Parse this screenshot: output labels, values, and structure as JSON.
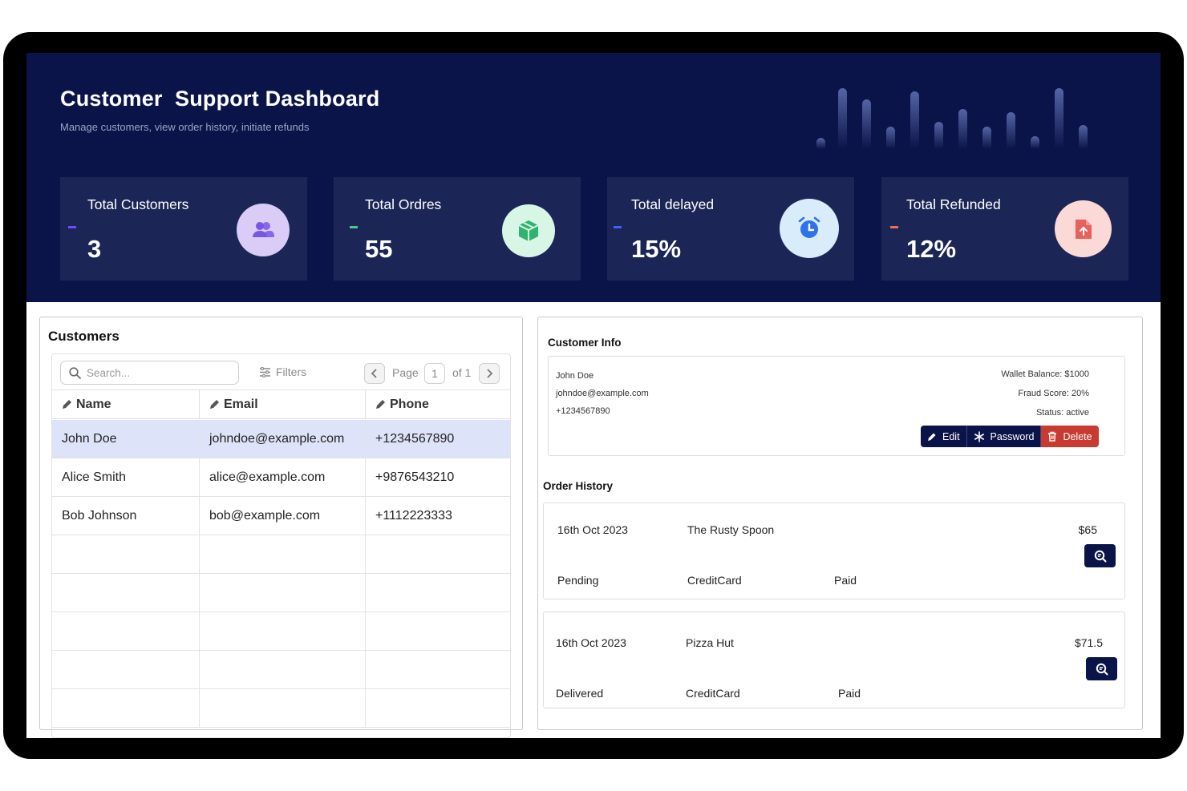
{
  "header": {
    "title": "Customer  Support Dashboard",
    "subtitle": "Manage customers, view order history, initiate refunds"
  },
  "stats": [
    {
      "label": "Total Customers",
      "value": "3",
      "accent": "#6c4ef0",
      "icon": "users-icon",
      "icon_bg": "#d9ccf7",
      "icon_color": "#7a55e6"
    },
    {
      "label": "Total Ordres",
      "value": "55",
      "accent": "#4cc98a",
      "icon": "package-icon",
      "icon_bg": "#d8f6e6",
      "icon_color": "#2fb46f"
    },
    {
      "label": "Total delayed",
      "value": "15%",
      "accent": "#3d63f0",
      "icon": "alarm-clock-icon",
      "icon_bg": "#d9ecfb",
      "icon_color": "#2f73e8"
    },
    {
      "label": "Total Refunded",
      "value": "12%",
      "accent": "#ef6a63",
      "icon": "file-upload-icon",
      "icon_bg": "#fbd9d7",
      "icon_color": "#e8625b"
    }
  ],
  "customers": {
    "title": "Customers",
    "search_placeholder": "Search...",
    "filters_label": "Filters",
    "pager": {
      "page_label": "Page",
      "page": "1",
      "of_label": "of 1"
    },
    "columns": [
      "Name",
      "Email",
      "Phone"
    ],
    "rows": [
      {
        "name": "John Doe",
        "email": "johndoe@example.com",
        "phone": "+1234567890"
      },
      {
        "name": "Alice Smith",
        "email": "alice@example.com",
        "phone": "+9876543210"
      },
      {
        "name": "Bob Johnson",
        "email": "bob@example.com",
        "phone": "+1112223333"
      }
    ]
  },
  "customer_info": {
    "title": "Customer Info",
    "name": "John Doe",
    "email": "johndoe@example.com",
    "phone": "+1234567890",
    "wallet": "Wallet Balance: $1000",
    "fraud": "Fraud Score: 20%",
    "status": "Status: active",
    "actions": {
      "edit": "Edit",
      "password": "Password",
      "delete": "Delete"
    }
  },
  "order_history": {
    "title": "Order History",
    "orders": [
      {
        "date": "16th Oct 2023",
        "restaurant": "The Rusty Spoon",
        "amount": "$65",
        "status": "Pending",
        "payment_method": "CreditCard",
        "payment_status": "Paid"
      },
      {
        "date": "16th Oct 2023",
        "restaurant": "Pizza Hut",
        "amount": "$71.5",
        "status": "Delivered",
        "payment_method": "CreditCard",
        "payment_status": "Paid"
      }
    ]
  },
  "colors": {
    "navy": "#0b1448",
    "card": "#1c2656",
    "danger": "#c93a31",
    "selected_row": "#dde3f8"
  }
}
